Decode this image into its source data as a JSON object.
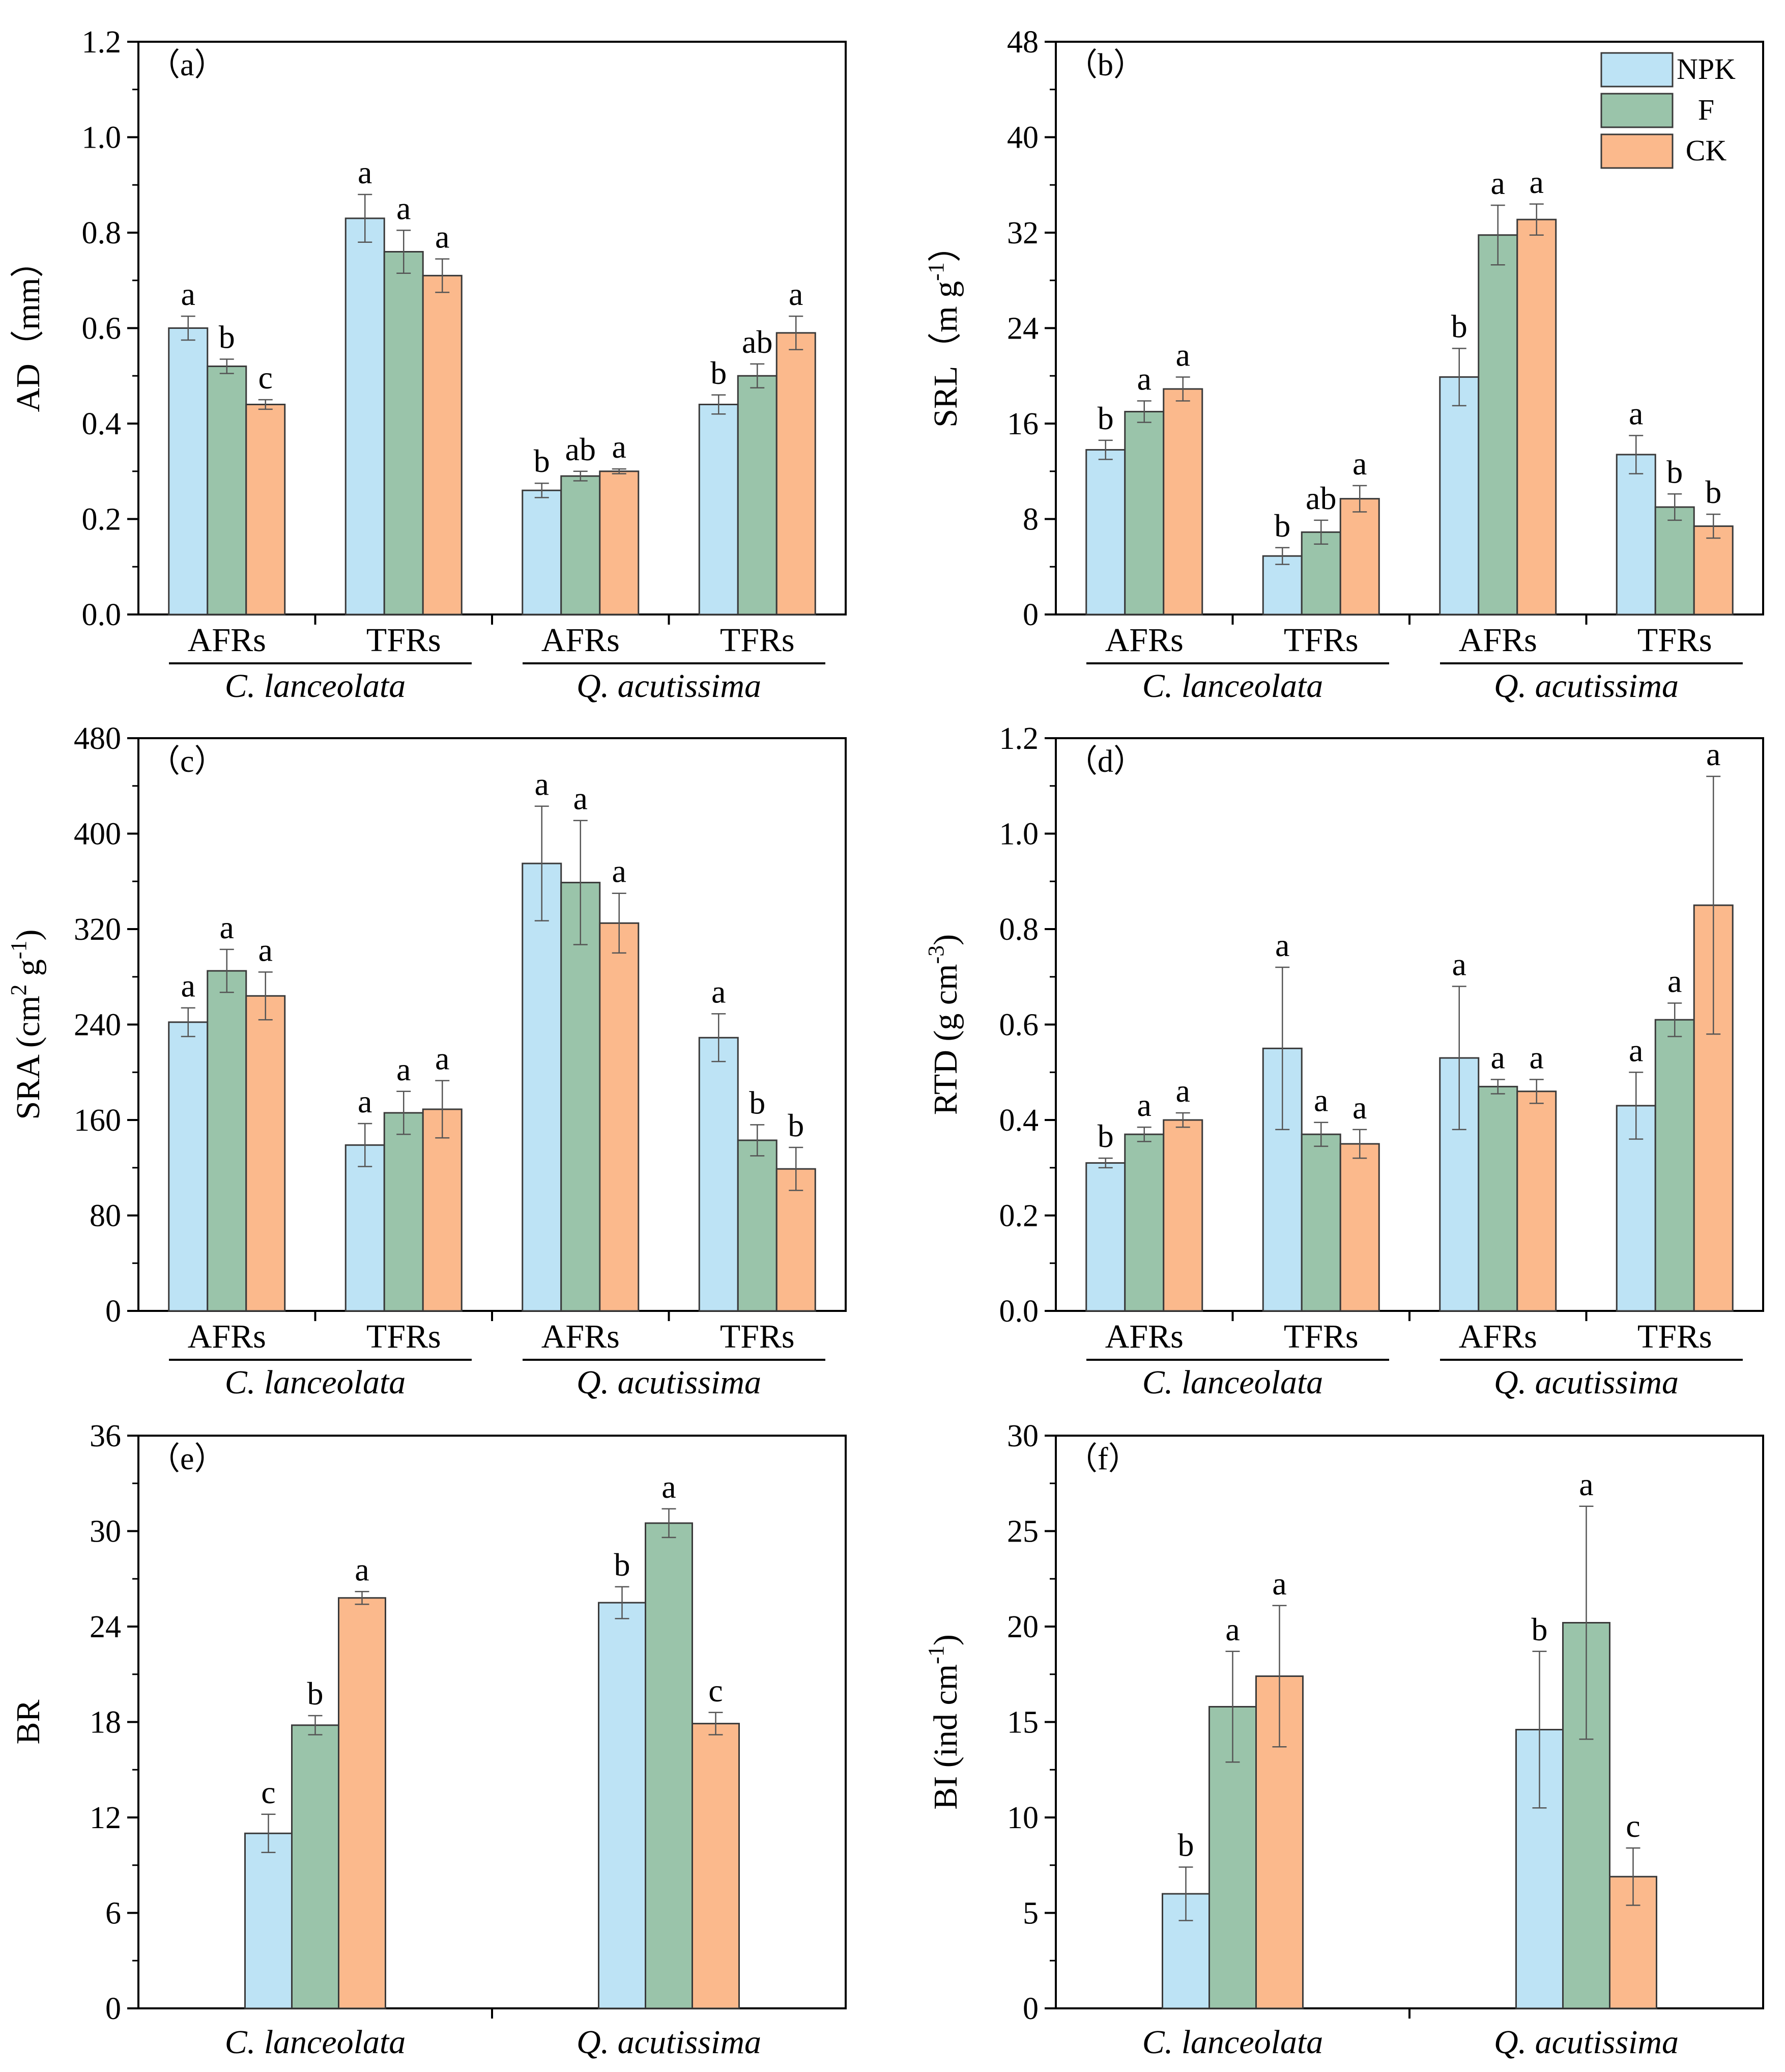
{
  "legend": [
    {
      "name": "NPK",
      "color": "#bde3f5"
    },
    {
      "name": "F",
      "color": "#9ac4aa"
    },
    {
      "name": "CK",
      "color": "#fbb98c"
    }
  ],
  "chart_data": [
    {
      "type": "bar",
      "panel_label": "（a）",
      "ylabel": "AD（mm）",
      "ylim": [
        0,
        1.2
      ],
      "yticks": [
        "0.0",
        "0.2",
        "0.4",
        "0.6",
        "0.8",
        "1.0",
        "1.2"
      ],
      "categories": [
        "AFRs",
        "TFRs",
        "AFRs",
        "TFRs"
      ],
      "species": [
        "C. lanceolata",
        "Q. acutissima"
      ],
      "series": [
        {
          "name": "NPK",
          "values": [
            0.6,
            0.83,
            0.26,
            0.44
          ],
          "errors": [
            0.025,
            0.05,
            0.015,
            0.02
          ],
          "letters": [
            "a",
            "a",
            "b",
            "b"
          ]
        },
        {
          "name": "F",
          "values": [
            0.52,
            0.76,
            0.29,
            0.5
          ],
          "errors": [
            0.015,
            0.045,
            0.01,
            0.025
          ],
          "letters": [
            "b",
            "a",
            "ab",
            "ab"
          ]
        },
        {
          "name": "CK",
          "values": [
            0.44,
            0.71,
            0.3,
            0.59
          ],
          "errors": [
            0.01,
            0.035,
            0.005,
            0.035
          ],
          "letters": [
            "c",
            "a",
            "a",
            "a"
          ]
        }
      ]
    },
    {
      "type": "bar",
      "panel_label": "（b）",
      "ylabel_main": "SRL（m g",
      "ylabel_sup": "-1",
      "ylabel_tail": "）",
      "ylim": [
        0,
        48
      ],
      "yticks": [
        "0",
        "8",
        "16",
        "24",
        "32",
        "40",
        "48"
      ],
      "categories": [
        "AFRs",
        "TFRs",
        "AFRs",
        "TFRs"
      ],
      "species": [
        "C. lanceolata",
        "Q. acutissima"
      ],
      "show_legend": true,
      "series": [
        {
          "name": "NPK",
          "values": [
            13.8,
            4.9,
            19.9,
            13.4
          ],
          "errors": [
            0.8,
            0.7,
            2.4,
            1.6
          ],
          "letters": [
            "b",
            "b",
            "b",
            "a"
          ]
        },
        {
          "name": "F",
          "values": [
            17.0,
            6.9,
            31.8,
            9.0
          ],
          "errors": [
            0.9,
            1.0,
            2.5,
            1.1
          ],
          "letters": [
            "a",
            "ab",
            "a",
            "b"
          ]
        },
        {
          "name": "CK",
          "values": [
            18.9,
            9.7,
            33.1,
            7.4
          ],
          "errors": [
            1.0,
            1.1,
            1.3,
            1.0
          ],
          "letters": [
            "a",
            "a",
            "a",
            "b"
          ]
        }
      ]
    },
    {
      "type": "bar",
      "panel_label": "（c）",
      "ylabel_main": "SRA (cm",
      "ylabel_sup": "2",
      "ylabel_mid": " g",
      "ylabel_sup2": "-1",
      "ylabel_tail": ")",
      "ylim": [
        0,
        480
      ],
      "yticks": [
        "0",
        "80",
        "160",
        "240",
        "320",
        "400",
        "480"
      ],
      "categories": [
        "AFRs",
        "TFRs",
        "AFRs",
        "TFRs"
      ],
      "species": [
        "C. lanceolata",
        "Q. acutissima"
      ],
      "series": [
        {
          "name": "NPK",
          "values": [
            242,
            139,
            375,
            229
          ],
          "errors": [
            12,
            18,
            48,
            20
          ],
          "letters": [
            "a",
            "a",
            "a",
            "a"
          ]
        },
        {
          "name": "F",
          "values": [
            285,
            166,
            359,
            143
          ],
          "errors": [
            18,
            18,
            52,
            13
          ],
          "letters": [
            "a",
            "a",
            "a",
            "b"
          ]
        },
        {
          "name": "CK",
          "values": [
            264,
            169,
            325,
            119
          ],
          "errors": [
            20,
            24,
            25,
            18
          ],
          "letters": [
            "a",
            "a",
            "a",
            "b"
          ]
        }
      ]
    },
    {
      "type": "bar",
      "panel_label": "（d）",
      "ylabel_main": "RTD (g  cm",
      "ylabel_sup": "-3",
      "ylabel_tail": ")",
      "ylim": [
        0,
        1.2
      ],
      "yticks": [
        "0.0",
        "0.2",
        "0.4",
        "0.6",
        "0.8",
        "1.0",
        "1.2"
      ],
      "categories": [
        "AFRs",
        "TFRs",
        "AFRs",
        "TFRs"
      ],
      "species": [
        "C. lanceolata",
        "Q. acutissima"
      ],
      "series": [
        {
          "name": "NPK",
          "values": [
            0.31,
            0.55,
            0.53,
            0.43
          ],
          "errors": [
            0.01,
            0.17,
            0.15,
            0.07
          ],
          "letters": [
            "b",
            "a",
            "a",
            "a"
          ]
        },
        {
          "name": "F",
          "values": [
            0.37,
            0.37,
            0.47,
            0.61
          ],
          "errors": [
            0.015,
            0.025,
            0.015,
            0.035
          ],
          "letters": [
            "a",
            "a",
            "a",
            "a"
          ]
        },
        {
          "name": "CK",
          "values": [
            0.4,
            0.35,
            0.46,
            0.85
          ],
          "errors": [
            0.015,
            0.03,
            0.025,
            0.27
          ],
          "letters": [
            "a",
            "a",
            "a",
            "a"
          ]
        }
      ]
    },
    {
      "type": "bar",
      "panel_label": "（e）",
      "ylabel": "BR",
      "ylim": [
        0,
        36
      ],
      "yticks": [
        "0",
        "6",
        "12",
        "18",
        "24",
        "30",
        "36"
      ],
      "categories": [
        "C. lanceolata",
        "Q. acutissima"
      ],
      "series": [
        {
          "name": "NPK",
          "values": [
            11.0,
            25.5
          ],
          "errors": [
            1.2,
            1.0
          ],
          "letters": [
            "c",
            "b"
          ]
        },
        {
          "name": "F",
          "values": [
            17.8,
            30.5
          ],
          "errors": [
            0.6,
            0.9
          ],
          "letters": [
            "b",
            "a"
          ]
        },
        {
          "name": "CK",
          "values": [
            25.8,
            17.9
          ],
          "errors": [
            0.4,
            0.7
          ],
          "letters": [
            "a",
            "c"
          ]
        }
      ]
    },
    {
      "type": "bar",
      "panel_label": "（f）",
      "ylabel_main": "BI (ind cm",
      "ylabel_sup": "-1",
      "ylabel_tail": ")",
      "ylim": [
        0,
        30
      ],
      "yticks": [
        "0",
        "5",
        "10",
        "15",
        "20",
        "25",
        "30"
      ],
      "categories": [
        "C. lanceolata",
        "Q. acutissima"
      ],
      "series": [
        {
          "name": "NPK",
          "values": [
            6.0,
            14.6
          ],
          "errors": [
            1.4,
            4.1
          ],
          "letters": [
            "b",
            "b"
          ]
        },
        {
          "name": "F",
          "values": [
            15.8,
            20.2
          ],
          "errors": [
            2.9,
            6.1
          ],
          "letters": [
            "a",
            "a"
          ]
        },
        {
          "name": "CK",
          "values": [
            17.4,
            6.9
          ],
          "errors": [
            3.7,
            1.5
          ],
          "letters": [
            "a",
            "c"
          ]
        }
      ]
    }
  ]
}
